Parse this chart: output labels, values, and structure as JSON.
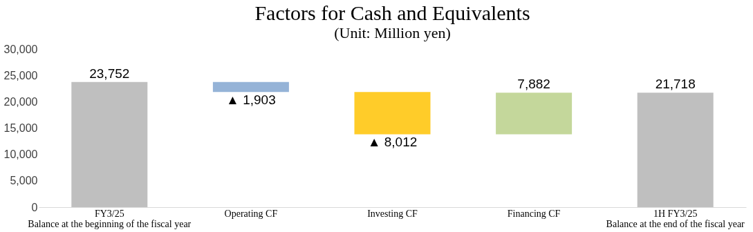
{
  "chart_data": {
    "type": "bar",
    "title": "Factors for Cash and Equivalents",
    "subtitle": "(Unit: Million yen)",
    "categories": [
      "FY3/25\nBalance at the beginning of the fiscal year",
      "Operating CF",
      "Investing CF",
      "Financing CF",
      "1H FY3/25\nBalance at the end of the fiscal year"
    ],
    "values": [
      23752,
      -1903,
      -8012,
      7882,
      21718
    ],
    "base": [
      0,
      23752,
      21849,
      13837,
      0
    ],
    "colors": [
      "#bfbfbf",
      "#95b3d7",
      "#ffcc29",
      "#c4d79b",
      "#bfbfbf"
    ],
    "value_labels": [
      "23,752",
      "▲ 1,903",
      "▲ 8,012",
      "7,882",
      "21,718"
    ],
    "ylim": [
      0,
      30000
    ],
    "yticks": [
      0,
      {
        "value": 5000,
        "label": "5,000"
      },
      {
        "value": 10000,
        "label": "10,000"
      },
      {
        "value": 15000,
        "label": "15,000"
      },
      {
        "value": 20000,
        "label": "20,000"
      },
      {
        "value": 25000,
        "label": "25,000"
      },
      {
        "value": 30000,
        "label": "30,000"
      }
    ],
    "tick_labels": true
  }
}
